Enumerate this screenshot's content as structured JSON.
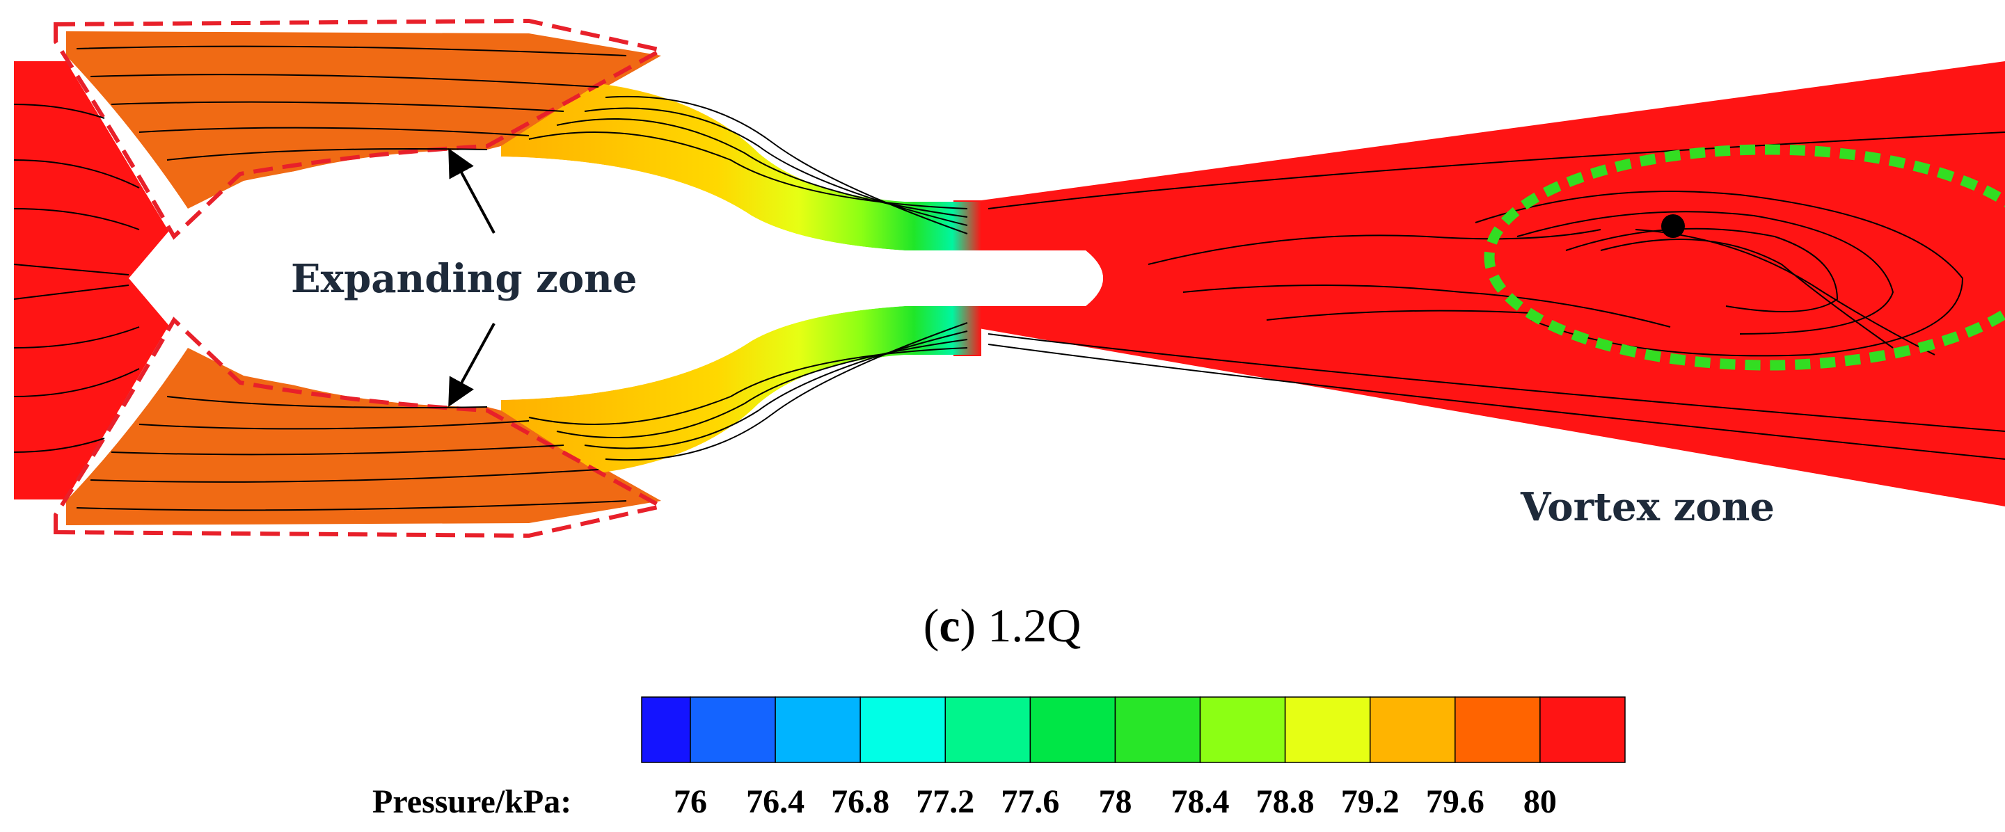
{
  "annotations": {
    "expanding_zone": "Expanding zone",
    "vortex_zone": "Vortex zone"
  },
  "caption": {
    "letter": "c",
    "text": "1.2Q"
  },
  "colorbar": {
    "label": "Pressure/kPa:",
    "ticks": [
      "76",
      "76.4",
      "76.8",
      "77.2",
      "77.6",
      "78",
      "78.4",
      "78.8",
      "79.2",
      "79.6",
      "80"
    ],
    "colors": [
      "#1414ff",
      "#1464ff",
      "#00b4ff",
      "#00ffe6",
      "#00f58c",
      "#00e646",
      "#28e628",
      "#8cff14",
      "#e6ff14",
      "#ffb400",
      "#ff6400",
      "#ff1414"
    ]
  },
  "colors": {
    "high_pressure": "#ff1414",
    "chamber": "#f06a14",
    "outline_dash": "#e8202a",
    "vortex_marker": "#33dd22",
    "streamline": "#000000"
  }
}
